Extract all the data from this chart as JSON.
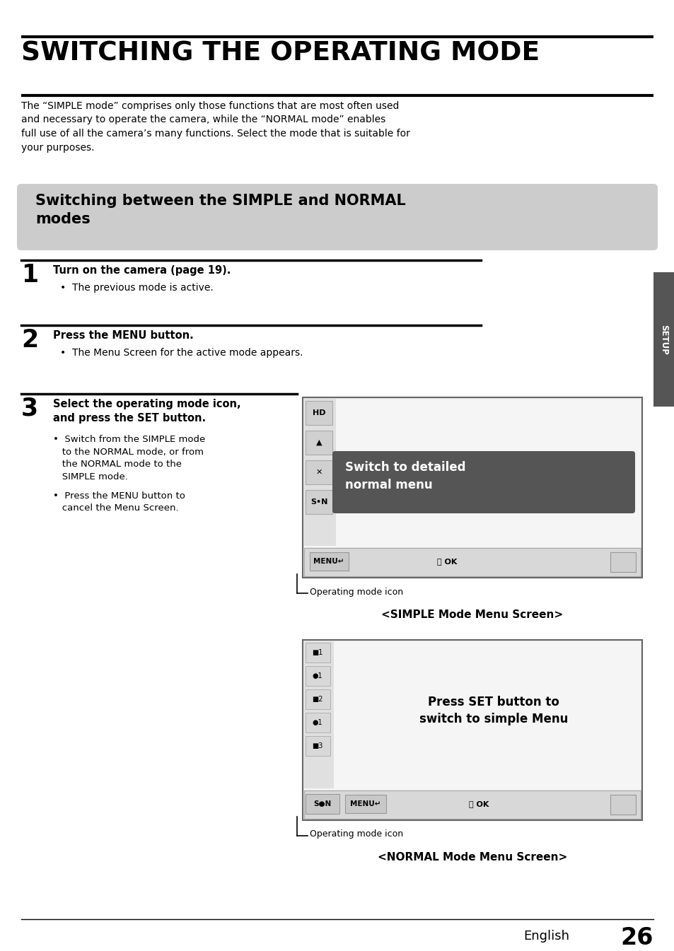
{
  "bg_color": "#ffffff",
  "title": "SWITCHING THE OPERATING MODE",
  "subtitle_box_text": "Switching between the SIMPLE and NORMAL\nmodes",
  "subtitle_box_color": "#cccccc",
  "body_text": "The “SIMPLE mode” comprises only those functions that are most often used\nand necessary to operate the camera, while the “NORMAL mode” enables\nfull use of all the camera’s many functions. Select the mode that is suitable for\nyour purposes.",
  "step1_num": "1",
  "step1_title": "Turn on the camera (page 19).",
  "step1_bullet": "•  The previous mode is active.",
  "step2_num": "2",
  "step2_title": "Press the MENU button.",
  "step2_bullet": "•  The Menu Screen for the active mode appears.",
  "step3_num": "3",
  "step3_title_bold": "Select the operating mode icon,\nand press the SET button.",
  "step3_bullet1": "•  Switch from the SIMPLE mode\n   to the NORMAL mode, or from\n   the NORMAL mode to the\n   SIMPLE mode.",
  "step3_bullet2": "•  Press the MENU button to\n   cancel the Menu Screen.",
  "screen1_tooltip": "Switch to detailed\nnormal menu",
  "screen1_tooltip_color": "#555555",
  "screen1_label": "Operating mode icon",
  "screen1_caption": "<SIMPLE Mode Menu Screen>",
  "screen2_tooltip": "Press SET button to\nswitch to simple Menu",
  "screen2_label": "Operating mode icon",
  "screen2_caption": "<NORMAL Mode Menu Screen>",
  "setup_tab_text": "SETUP",
  "setup_tab_color": "#555555",
  "footer_text": "English",
  "footer_page": "26"
}
